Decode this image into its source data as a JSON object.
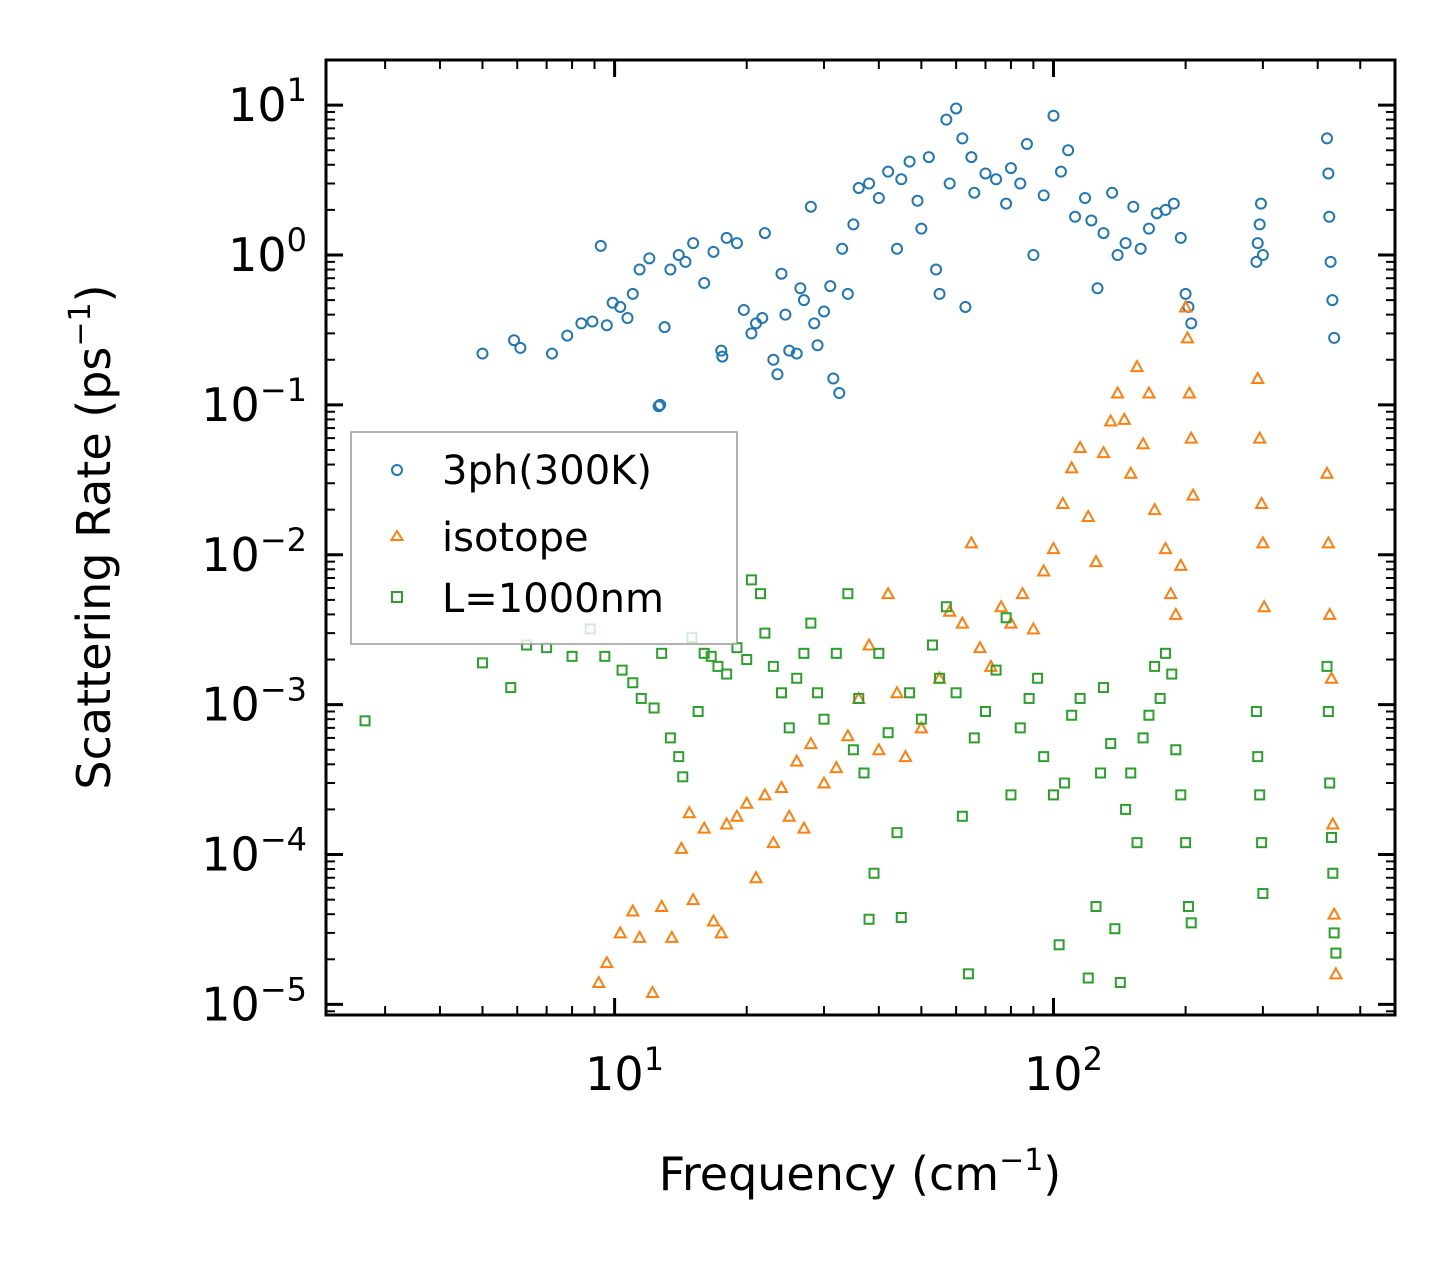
{
  "chart_data": {
    "type": "scatter",
    "xscale": "log",
    "yscale": "log",
    "xlim": [
      2.2,
      600
    ],
    "ylim": [
      8.5e-06,
      20
    ],
    "xlabel": {
      "text": "Frequency (cm",
      "sup": "−1",
      "close": ")"
    },
    "ylabel": {
      "text": "Scattering Rate (ps",
      "sup": "−1",
      "close": ")"
    },
    "x_ticks": [
      {
        "value": 10,
        "base": "10",
        "exp": "1"
      },
      {
        "value": 100,
        "base": "10",
        "exp": "2"
      }
    ],
    "y_ticks": [
      {
        "value": 10,
        "base": "10",
        "exp": "1"
      },
      {
        "value": 1,
        "base": "10",
        "exp": "0"
      },
      {
        "value": 0.1,
        "base": "10",
        "exp": "−1"
      },
      {
        "value": 0.01,
        "base": "10",
        "exp": "−2"
      },
      {
        "value": 0.001,
        "base": "10",
        "exp": "−3"
      },
      {
        "value": 0.0001,
        "base": "10",
        "exp": "−4"
      },
      {
        "value": 1e-05,
        "base": "10",
        "exp": "−5"
      }
    ],
    "legend_position": "center-left",
    "series": [
      {
        "name": "3ph(300K)",
        "marker": "circle",
        "color": "#1f77b4",
        "points": [
          [
            5.0,
            0.22
          ],
          [
            5.9,
            0.27
          ],
          [
            6.1,
            0.24
          ],
          [
            7.2,
            0.22
          ],
          [
            7.8,
            0.29
          ],
          [
            8.4,
            0.35
          ],
          [
            8.9,
            0.36
          ],
          [
            9.3,
            1.15
          ],
          [
            9.6,
            0.34
          ],
          [
            9.9,
            0.48
          ],
          [
            10.3,
            0.45
          ],
          [
            10.7,
            0.38
          ],
          [
            11.0,
            0.55
          ],
          [
            11.4,
            0.8
          ],
          [
            12.0,
            0.95
          ],
          [
            12.6,
            0.098
          ],
          [
            12.7,
            0.1
          ],
          [
            13.0,
            0.33
          ],
          [
            13.4,
            0.8
          ],
          [
            14.0,
            1.0
          ],
          [
            14.5,
            0.9
          ],
          [
            15.1,
            1.2
          ],
          [
            16.0,
            0.65
          ],
          [
            16.8,
            1.05
          ],
          [
            17.5,
            0.23
          ],
          [
            17.6,
            0.21
          ],
          [
            18.0,
            1.3
          ],
          [
            19.0,
            1.2
          ],
          [
            19.7,
            0.43
          ],
          [
            20.5,
            0.3
          ],
          [
            21.0,
            0.35
          ],
          [
            21.7,
            0.38
          ],
          [
            22.0,
            1.4
          ],
          [
            23.0,
            0.2
          ],
          [
            23.5,
            0.16
          ],
          [
            24.0,
            0.75
          ],
          [
            24.5,
            0.4
          ],
          [
            25.0,
            0.23
          ],
          [
            26.0,
            0.22
          ],
          [
            26.5,
            0.6
          ],
          [
            27.0,
            0.5
          ],
          [
            28.0,
            2.1
          ],
          [
            28.5,
            0.35
          ],
          [
            29.0,
            0.25
          ],
          [
            30.0,
            0.42
          ],
          [
            31.0,
            0.62
          ],
          [
            31.5,
            0.15
          ],
          [
            32.5,
            0.12
          ],
          [
            33.0,
            1.1
          ],
          [
            34.0,
            0.55
          ],
          [
            35.0,
            1.6
          ],
          [
            36.0,
            2.8
          ],
          [
            38.0,
            3.0
          ],
          [
            40.0,
            2.4
          ],
          [
            42.0,
            3.6
          ],
          [
            44.0,
            1.1
          ],
          [
            45.0,
            3.2
          ],
          [
            47.0,
            4.2
          ],
          [
            49.0,
            2.3
          ],
          [
            50.0,
            1.5
          ],
          [
            52.0,
            4.5
          ],
          [
            54.0,
            0.8
          ],
          [
            55.0,
            0.55
          ],
          [
            57.0,
            8.0
          ],
          [
            58.0,
            3.0
          ],
          [
            60.0,
            9.5
          ],
          [
            62.0,
            6.0
          ],
          [
            63.0,
            0.45
          ],
          [
            65.0,
            4.5
          ],
          [
            66.0,
            2.6
          ],
          [
            70.0,
            3.5
          ],
          [
            74.0,
            3.2
          ],
          [
            78.0,
            2.2
          ],
          [
            80.0,
            3.8
          ],
          [
            84.0,
            3.0
          ],
          [
            87.0,
            5.5
          ],
          [
            90.0,
            1.0
          ],
          [
            95.0,
            2.5
          ],
          [
            100.0,
            8.5
          ],
          [
            104.0,
            3.6
          ],
          [
            108.0,
            5.0
          ],
          [
            112.0,
            1.8
          ],
          [
            118.0,
            2.4
          ],
          [
            122.0,
            1.7
          ],
          [
            126.0,
            0.6
          ],
          [
            130.0,
            1.4
          ],
          [
            136.0,
            2.6
          ],
          [
            140.0,
            1.0
          ],
          [
            146.0,
            1.2
          ],
          [
            152.0,
            2.1
          ],
          [
            158.0,
            1.1
          ],
          [
            165.0,
            1.5
          ],
          [
            172.0,
            1.9
          ],
          [
            180.0,
            2.0
          ],
          [
            188.0,
            2.2
          ],
          [
            195.0,
            1.3
          ],
          [
            200.0,
            0.55
          ],
          [
            203.0,
            0.45
          ],
          [
            206.0,
            0.35
          ],
          [
            290.0,
            0.9
          ],
          [
            292.0,
            1.2
          ],
          [
            295.0,
            1.6
          ],
          [
            297.0,
            2.2
          ],
          [
            300.0,
            1.0
          ],
          [
            420.0,
            6.0
          ],
          [
            423.0,
            3.5
          ],
          [
            425.0,
            1.8
          ],
          [
            428.0,
            0.9
          ],
          [
            432.0,
            0.5
          ],
          [
            436.0,
            0.28
          ]
        ]
      },
      {
        "name": "isotope",
        "marker": "triangle",
        "color": "#ff7f0e",
        "points": [
          [
            9.2,
            1.4e-05
          ],
          [
            9.6,
            1.9e-05
          ],
          [
            10.3,
            3e-05
          ],
          [
            11.0,
            4.2e-05
          ],
          [
            11.4,
            2.8e-05
          ],
          [
            12.2,
            1.2e-05
          ],
          [
            12.8,
            4.5e-05
          ],
          [
            13.5,
            2.8e-05
          ],
          [
            14.2,
            0.00011
          ],
          [
            14.8,
            0.00019
          ],
          [
            15.1,
            5e-05
          ],
          [
            16.0,
            0.00015
          ],
          [
            16.8,
            3.6e-05
          ],
          [
            17.5,
            3e-05
          ],
          [
            18.0,
            0.00016
          ],
          [
            19.0,
            0.00018
          ],
          [
            20.0,
            0.00022
          ],
          [
            21.0,
            7e-05
          ],
          [
            22.0,
            0.00025
          ],
          [
            23.0,
            0.00012
          ],
          [
            24.0,
            0.00028
          ],
          [
            25.0,
            0.00018
          ],
          [
            26.0,
            0.00042
          ],
          [
            27.0,
            0.00015
          ],
          [
            28.0,
            0.00055
          ],
          [
            30.0,
            0.0003
          ],
          [
            32.0,
            0.00038
          ],
          [
            34.0,
            0.00062
          ],
          [
            36.0,
            0.0011
          ],
          [
            38.0,
            0.0025
          ],
          [
            40.0,
            0.0005
          ],
          [
            42.0,
            0.0055
          ],
          [
            44.0,
            0.0012
          ],
          [
            46.0,
            0.00045
          ],
          [
            50.0,
            0.0007
          ],
          [
            55.0,
            0.0015
          ],
          [
            58.0,
            0.0042
          ],
          [
            62.0,
            0.0035
          ],
          [
            65.0,
            0.012
          ],
          [
            68.0,
            0.0024
          ],
          [
            72.0,
            0.0018
          ],
          [
            76.0,
            0.0045
          ],
          [
            80.0,
            0.0035
          ],
          [
            85.0,
            0.0055
          ],
          [
            90.0,
            0.0032
          ],
          [
            95.0,
            0.0078
          ],
          [
            100.0,
            0.011
          ],
          [
            105.0,
            0.022
          ],
          [
            110.0,
            0.038
          ],
          [
            115.0,
            0.052
          ],
          [
            120.0,
            0.018
          ],
          [
            125.0,
            0.009
          ],
          [
            130.0,
            0.048
          ],
          [
            135.0,
            0.078
          ],
          [
            140.0,
            0.12
          ],
          [
            145.0,
            0.08
          ],
          [
            150.0,
            0.035
          ],
          [
            155.0,
            0.18
          ],
          [
            160.0,
            0.055
          ],
          [
            165.0,
            0.12
          ],
          [
            170.0,
            0.02
          ],
          [
            180.0,
            0.011
          ],
          [
            185.0,
            0.0055
          ],
          [
            190.0,
            0.004
          ],
          [
            195.0,
            0.0085
          ],
          [
            200.0,
            0.45
          ],
          [
            202.0,
            0.28
          ],
          [
            204.0,
            0.12
          ],
          [
            206.0,
            0.06
          ],
          [
            208.0,
            0.025
          ],
          [
            292.0,
            0.15
          ],
          [
            295.0,
            0.06
          ],
          [
            298.0,
            0.022
          ],
          [
            300.0,
            0.012
          ],
          [
            302.0,
            0.0045
          ],
          [
            420.0,
            0.035
          ],
          [
            423.0,
            0.012
          ],
          [
            426.0,
            0.004
          ],
          [
            430.0,
            0.0015
          ],
          [
            433.0,
            0.00016
          ],
          [
            436.0,
            4e-05
          ],
          [
            440.0,
            1.6e-05
          ]
        ]
      },
      {
        "name": "L=1000nm",
        "marker": "square",
        "color": "#2ca02c",
        "points": [
          [
            2.7,
            0.00078
          ],
          [
            5.0,
            0.0019
          ],
          [
            5.8,
            0.0013
          ],
          [
            6.3,
            0.0025
          ],
          [
            7.0,
            0.0024
          ],
          [
            8.0,
            0.0021
          ],
          [
            8.8,
            0.0032
          ],
          [
            9.5,
            0.0021
          ],
          [
            10.4,
            0.0017
          ],
          [
            11.0,
            0.0014
          ],
          [
            11.5,
            0.0011
          ],
          [
            12.3,
            0.00095
          ],
          [
            12.8,
            0.0022
          ],
          [
            13.4,
            0.0006
          ],
          [
            14.0,
            0.00045
          ],
          [
            14.3,
            0.00033
          ],
          [
            15.0,
            0.0028
          ],
          [
            15.5,
            0.0009
          ],
          [
            16.0,
            0.0022
          ],
          [
            16.6,
            0.0021
          ],
          [
            17.2,
            0.0018
          ],
          [
            18.0,
            0.0016
          ],
          [
            19.0,
            0.0024
          ],
          [
            20.0,
            0.002
          ],
          [
            20.5,
            0.0068
          ],
          [
            21.5,
            0.0055
          ],
          [
            22.0,
            0.003
          ],
          [
            23.0,
            0.0018
          ],
          [
            24.0,
            0.0012
          ],
          [
            25.0,
            0.0007
          ],
          [
            26.0,
            0.0015
          ],
          [
            27.0,
            0.0022
          ],
          [
            28.0,
            0.0035
          ],
          [
            29.0,
            0.0012
          ],
          [
            30.0,
            0.0008
          ],
          [
            32.0,
            0.0022
          ],
          [
            34.0,
            0.0055
          ],
          [
            35.0,
            0.0005
          ],
          [
            36.0,
            0.0011
          ],
          [
            37.0,
            0.00035
          ],
          [
            38.0,
            3.7e-05
          ],
          [
            39.0,
            7.5e-05
          ],
          [
            40.0,
            0.0022
          ],
          [
            42.0,
            0.00065
          ],
          [
            44.0,
            0.00014
          ],
          [
            45.0,
            3.8e-05
          ],
          [
            47.0,
            0.0012
          ],
          [
            50.0,
            0.0008
          ],
          [
            53.0,
            0.0025
          ],
          [
            55.0,
            0.0015
          ],
          [
            57.0,
            0.0045
          ],
          [
            60.0,
            0.0012
          ],
          [
            62.0,
            0.00018
          ],
          [
            64.0,
            1.6e-05
          ],
          [
            66.0,
            0.0006
          ],
          [
            70.0,
            0.0009
          ],
          [
            74.0,
            0.0017
          ],
          [
            78.0,
            0.0038
          ],
          [
            80.0,
            0.00025
          ],
          [
            84.0,
            0.0007
          ],
          [
            88.0,
            0.0011
          ],
          [
            92.0,
            0.0015
          ],
          [
            95.0,
            0.00045
          ],
          [
            100.0,
            0.00025
          ],
          [
            103.0,
            2.5e-05
          ],
          [
            106.0,
            0.0003
          ],
          [
            110.0,
            0.00085
          ],
          [
            115.0,
            0.0011
          ],
          [
            120.0,
            1.5e-05
          ],
          [
            125.0,
            4.5e-05
          ],
          [
            128.0,
            0.00035
          ],
          [
            130.0,
            0.0013
          ],
          [
            135.0,
            0.00055
          ],
          [
            138.0,
            3.2e-05
          ],
          [
            142.0,
            1.4e-05
          ],
          [
            146.0,
            0.0002
          ],
          [
            150.0,
            0.00035
          ],
          [
            155.0,
            0.00012
          ],
          [
            160.0,
            0.0006
          ],
          [
            165.0,
            0.00085
          ],
          [
            170.0,
            0.0018
          ],
          [
            175.0,
            0.0011
          ],
          [
            180.0,
            0.0022
          ],
          [
            186.0,
            0.0016
          ],
          [
            190.0,
            0.0005
          ],
          [
            195.0,
            0.00025
          ],
          [
            200.0,
            0.00012
          ],
          [
            203.0,
            4.5e-05
          ],
          [
            206.0,
            3.5e-05
          ],
          [
            290.0,
            0.0009
          ],
          [
            292.0,
            0.00045
          ],
          [
            295.0,
            0.00025
          ],
          [
            298.0,
            0.00012
          ],
          [
            300.0,
            5.5e-05
          ],
          [
            420.0,
            0.0018
          ],
          [
            423.0,
            0.0009
          ],
          [
            426.0,
            0.0003
          ],
          [
            430.0,
            0.00013
          ],
          [
            433.0,
            7.5e-05
          ],
          [
            436.0,
            3e-05
          ],
          [
            440.0,
            2.2e-05
          ]
        ]
      }
    ]
  }
}
